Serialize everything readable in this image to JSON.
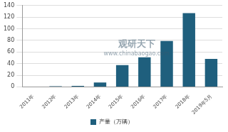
{
  "chart_data": {
    "type": "bar",
    "categories": [
      "2011年",
      "2012年",
      "2013年",
      "2014年",
      "2015年",
      "2016年",
      "2017年",
      "2018年",
      "2019年5月"
    ],
    "series": [
      {
        "name": "产量（万辆）",
        "color": "#1f5f7d",
        "values": [
          0.5,
          1.2,
          1.8,
          7.5,
          37.5,
          51,
          79,
          127,
          48
        ]
      }
    ],
    "ylim": [
      0,
      140
    ],
    "yticks": [
      0,
      20,
      40,
      60,
      80,
      100,
      120,
      140
    ],
    "grid": true,
    "legend": "bottom",
    "annotations": [
      "观研天下",
      "www.chinabaogao.com"
    ]
  }
}
